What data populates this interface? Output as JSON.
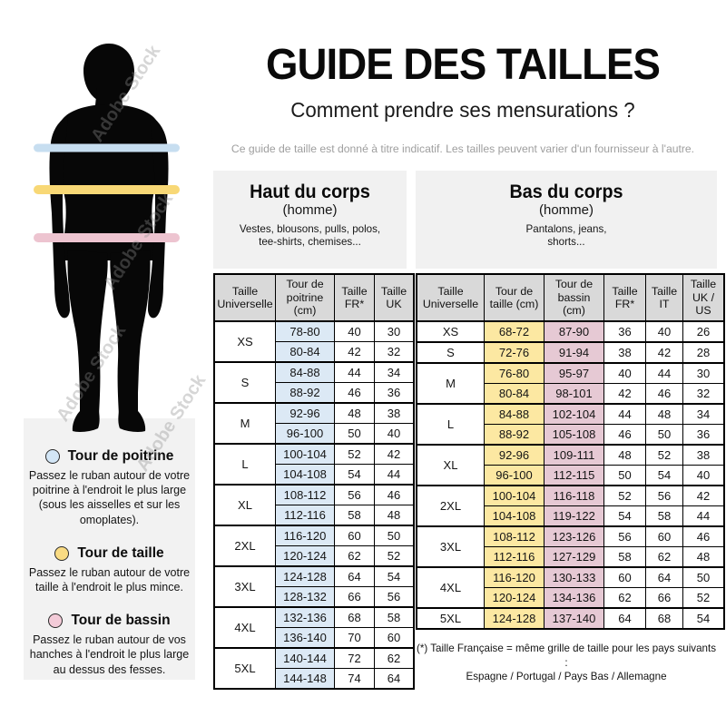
{
  "header": {
    "title": "GUIDE DES TAILLES",
    "subtitle": "Comment prendre ses mensurations ?",
    "disclaimer": "Ce guide de taille est donné à titre indicatif. Les tailles peuvent varier d'un fournisseur à l'autre."
  },
  "figure": {
    "watermark": "Adobe Stock",
    "bands": [
      {
        "name": "tour-de-poitrine",
        "color": "#c7def0"
      },
      {
        "name": "tour-de-taille",
        "color": "#f8d876"
      },
      {
        "name": "tour-de-bassin",
        "color": "#edc4d0"
      }
    ]
  },
  "legend": {
    "items": [
      {
        "label": "Tour de poitrine",
        "color": "#d3e6f6",
        "description": "Passez le ruban autour de votre poitrine à l'endroit le plus large (sous les aisselles et sur les omoplates)."
      },
      {
        "label": "Tour de taille",
        "color": "#f9db83",
        "description": "Passez le ruban autour de votre taille à l'endroit le plus mince."
      },
      {
        "label": "Tour de bassin",
        "color": "#f3cbd8",
        "description": "Passez le ruban autour de vos hanches à l'endroit le plus large au dessus des fesses."
      }
    ]
  },
  "upper_table": {
    "title": "Haut du corps",
    "subtitle": "(homme)",
    "description": "Vestes, blousons, pulls, polos,\ntee-shirts, chemises...",
    "columns": [
      "Taille Universelle",
      "Tour de poitrine (cm)",
      "Taille FR*",
      "Taille UK"
    ],
    "column_backgrounds": [
      "#ffffff",
      "#dce9f5",
      "#ffffff",
      "#ffffff"
    ],
    "groups": [
      {
        "size": "XS",
        "rows": [
          [
            "78-80",
            "40",
            "30"
          ],
          [
            "80-84",
            "42",
            "32"
          ]
        ]
      },
      {
        "size": "S",
        "rows": [
          [
            "84-88",
            "44",
            "34"
          ],
          [
            "88-92",
            "46",
            "36"
          ]
        ]
      },
      {
        "size": "M",
        "rows": [
          [
            "92-96",
            "48",
            "38"
          ],
          [
            "96-100",
            "50",
            "40"
          ]
        ]
      },
      {
        "size": "L",
        "rows": [
          [
            "100-104",
            "52",
            "42"
          ],
          [
            "104-108",
            "54",
            "44"
          ]
        ]
      },
      {
        "size": "XL",
        "rows": [
          [
            "108-112",
            "56",
            "46"
          ],
          [
            "112-116",
            "58",
            "48"
          ]
        ]
      },
      {
        "size": "2XL",
        "rows": [
          [
            "116-120",
            "60",
            "50"
          ],
          [
            "120-124",
            "62",
            "52"
          ]
        ]
      },
      {
        "size": "3XL",
        "rows": [
          [
            "124-128",
            "64",
            "54"
          ],
          [
            "128-132",
            "66",
            "56"
          ]
        ]
      },
      {
        "size": "4XL",
        "rows": [
          [
            "132-136",
            "68",
            "58"
          ],
          [
            "136-140",
            "70",
            "60"
          ]
        ]
      },
      {
        "size": "5XL",
        "rows": [
          [
            "140-144",
            "72",
            "62"
          ],
          [
            "144-148",
            "74",
            "64"
          ]
        ]
      }
    ]
  },
  "lower_table": {
    "title": "Bas du corps",
    "subtitle": "(homme)",
    "description": "Pantalons, jeans,\nshorts...",
    "columns": [
      "Taille Universelle",
      "Tour de taille (cm)",
      "Tour de bassin (cm)",
      "Taille FR*",
      "Taille IT",
      "Taille UK / US"
    ],
    "column_backgrounds": [
      "#ffffff",
      "#fce8a2",
      "#e6c9d4",
      "#ffffff",
      "#ffffff",
      "#ffffff"
    ],
    "groups": [
      {
        "size": "XS",
        "rows": [
          [
            "68-72",
            "87-90",
            "36",
            "40",
            "26"
          ]
        ]
      },
      {
        "size": "S",
        "rows": [
          [
            "72-76",
            "91-94",
            "38",
            "42",
            "28"
          ]
        ]
      },
      {
        "size": "M",
        "rows": [
          [
            "76-80",
            "95-97",
            "40",
            "44",
            "30"
          ],
          [
            "80-84",
            "98-101",
            "42",
            "46",
            "32"
          ]
        ]
      },
      {
        "size": "L",
        "rows": [
          [
            "84-88",
            "102-104",
            "44",
            "48",
            "34"
          ],
          [
            "88-92",
            "105-108",
            "46",
            "50",
            "36"
          ]
        ]
      },
      {
        "size": "XL",
        "rows": [
          [
            "92-96",
            "109-111",
            "48",
            "52",
            "38"
          ],
          [
            "96-100",
            "112-115",
            "50",
            "54",
            "40"
          ]
        ]
      },
      {
        "size": "2XL",
        "rows": [
          [
            "100-104",
            "116-118",
            "52",
            "56",
            "42"
          ],
          [
            "104-108",
            "119-122",
            "54",
            "58",
            "44"
          ]
        ]
      },
      {
        "size": "3XL",
        "rows": [
          [
            "108-112",
            "123-126",
            "56",
            "60",
            "46"
          ],
          [
            "112-116",
            "127-129",
            "58",
            "62",
            "48"
          ]
        ]
      },
      {
        "size": "4XL",
        "rows": [
          [
            "116-120",
            "130-133",
            "60",
            "64",
            "50"
          ],
          [
            "120-124",
            "134-136",
            "62",
            "66",
            "52"
          ]
        ]
      },
      {
        "size": "5XL",
        "rows": [
          [
            "124-128",
            "137-140",
            "64",
            "68",
            "54"
          ]
        ]
      }
    ]
  },
  "footnote": {
    "line1": "(*) Taille Française = même grille de taille pour les pays suivants :",
    "line2": "Espagne / Portugal / Pays Bas / Allemagne"
  }
}
